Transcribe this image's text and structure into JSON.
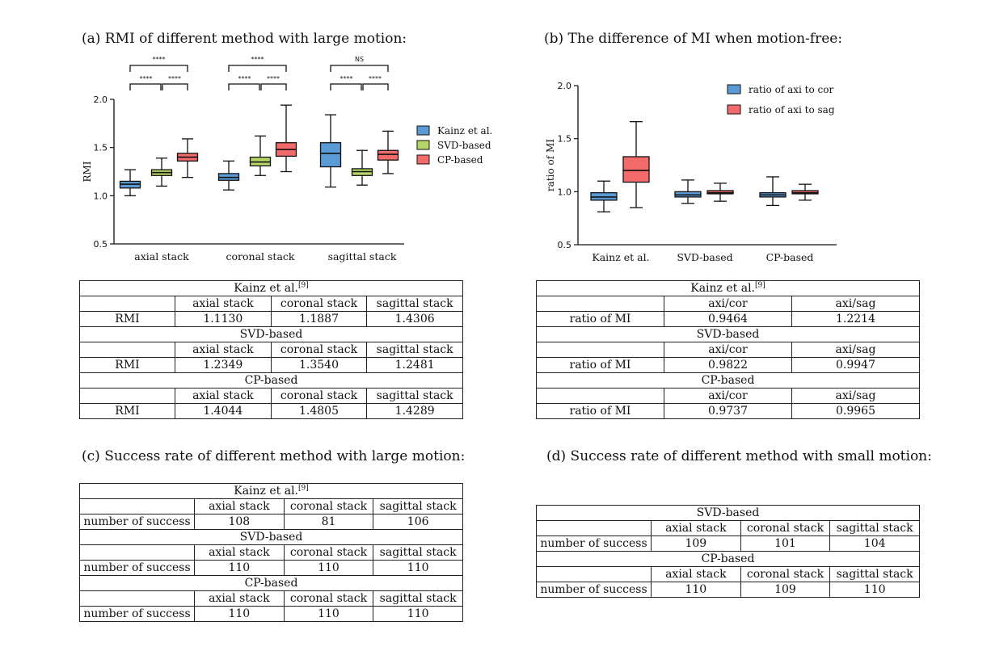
{
  "panels": {
    "a": {
      "title": "(a) RMI of different method with large motion:"
    },
    "b": {
      "title": "(b) The difference of MI when motion-free:"
    },
    "c": {
      "title": "(c) Success rate of different method with large motion:"
    },
    "d": {
      "title": "(d) Success rate of different method with small motion:"
    }
  },
  "chart_data": [
    {
      "type": "boxplot",
      "title": "(a) RMI of different method with large motion:",
      "xlabel": "",
      "ylabel": "RMI",
      "ylim": [
        0.5,
        2.0
      ],
      "yticks": [
        "0.5",
        "1.0",
        "1.5",
        "2.0"
      ],
      "categories": [
        "axial stack",
        "coronal stack",
        "sagittal stack"
      ],
      "legend": {
        "position": "right",
        "entries": [
          "Kainz et al.",
          "SVD-based",
          "CP-based"
        ]
      },
      "colors": [
        "#5b9bd5",
        "#b7d468",
        "#f26a6a"
      ],
      "series": [
        {
          "name": "Kainz et al.",
          "boxes": [
            {
              "min": 1.0,
              "q1": 1.08,
              "median": 1.12,
              "q3": 1.15,
              "max": 1.27
            },
            {
              "min": 1.06,
              "q1": 1.16,
              "median": 1.19,
              "q3": 1.23,
              "max": 1.36
            },
            {
              "min": 1.09,
              "q1": 1.3,
              "median": 1.44,
              "q3": 1.55,
              "max": 1.84
            }
          ]
        },
        {
          "name": "SVD-based",
          "boxes": [
            {
              "min": 1.1,
              "q1": 1.21,
              "median": 1.24,
              "q3": 1.27,
              "max": 1.39
            },
            {
              "min": 1.21,
              "q1": 1.31,
              "median": 1.35,
              "q3": 1.4,
              "max": 1.62
            },
            {
              "min": 1.11,
              "q1": 1.21,
              "median": 1.25,
              "q3": 1.28,
              "max": 1.47
            }
          ]
        },
        {
          "name": "CP-based",
          "boxes": [
            {
              "min": 1.19,
              "q1": 1.36,
              "median": 1.4,
              "q3": 1.44,
              "max": 1.59
            },
            {
              "min": 1.25,
              "q1": 1.41,
              "median": 1.48,
              "q3": 1.55,
              "max": 1.94
            },
            {
              "min": 1.23,
              "q1": 1.37,
              "median": 1.43,
              "q3": 1.47,
              "max": 1.67
            }
          ]
        }
      ],
      "significance": [
        {
          "group": "axial stack",
          "outer": "****",
          "left": "****",
          "right": "****"
        },
        {
          "group": "coronal stack",
          "outer": "****",
          "left": "****",
          "right": "****"
        },
        {
          "group": "sagittal stack",
          "outer": "NS",
          "left": "****",
          "right": "****"
        }
      ]
    },
    {
      "type": "boxplot",
      "title": "(b) The difference of MI when motion-free:",
      "xlabel": "",
      "ylabel": "ratio of MI",
      "ylim": [
        0.5,
        2.0
      ],
      "yticks": [
        "0.5",
        "1.0",
        "1.5",
        "2.0"
      ],
      "categories": [
        "Kainz et al.",
        "SVD-based",
        "CP-based"
      ],
      "legend": {
        "position": "top-right",
        "entries": [
          "ratio of axi to cor",
          "ratio of axi to sag"
        ]
      },
      "colors": [
        "#5b9bd5",
        "#f26a6a"
      ],
      "series": [
        {
          "name": "ratio of axi to cor",
          "boxes": [
            {
              "min": 0.81,
              "q1": 0.92,
              "median": 0.95,
              "q3": 0.99,
              "max": 1.1
            },
            {
              "min": 0.89,
              "q1": 0.95,
              "median": 0.97,
              "q3": 1.0,
              "max": 1.11
            },
            {
              "min": 0.87,
              "q1": 0.95,
              "median": 0.97,
              "q3": 0.99,
              "max": 1.14
            }
          ]
        },
        {
          "name": "ratio of axi to sag",
          "boxes": [
            {
              "min": 0.85,
              "q1": 1.09,
              "median": 1.2,
              "q3": 1.33,
              "max": 1.66
            },
            {
              "min": 0.91,
              "q1": 0.98,
              "median": 0.99,
              "q3": 1.01,
              "max": 1.08
            },
            {
              "min": 0.92,
              "q1": 0.98,
              "median": 0.99,
              "q3": 1.01,
              "max": 1.07
            }
          ]
        }
      ]
    }
  ],
  "tables": {
    "a": {
      "label_col_width": 118,
      "blocks": [
        {
          "title": "Kainz et al.",
          "sup": "[9]",
          "headers": [
            "axial stack",
            "coronal stack",
            "sagittal stack"
          ],
          "row_label": "RMI",
          "values": [
            "1.1130",
            "1.1887",
            "1.4306"
          ]
        },
        {
          "title": "SVD-based",
          "sup": "",
          "headers": [
            "axial stack",
            "coronal stack",
            "sagittal stack"
          ],
          "row_label": "RMI",
          "values": [
            "1.2349",
            "1.3540",
            "1.2481"
          ]
        },
        {
          "title": "CP-based",
          "sup": "",
          "headers": [
            "axial stack",
            "coronal stack",
            "sagittal stack"
          ],
          "row_label": "RMI",
          "values": [
            "1.4044",
            "1.4805",
            "1.4289"
          ]
        }
      ]
    },
    "b": {
      "label_col_width": 158,
      "blocks": [
        {
          "title": "Kainz et al.",
          "sup": "[9]",
          "headers": [
            "axi/cor",
            "axi/sag"
          ],
          "row_label": "ratio of MI",
          "values": [
            "0.9464",
            "1.2214"
          ]
        },
        {
          "title": "SVD-based",
          "sup": "",
          "headers": [
            "axi/cor",
            "axi/sag"
          ],
          "row_label": "ratio of MI",
          "values": [
            "0.9822",
            "0.9947"
          ]
        },
        {
          "title": "CP-based",
          "sup": "",
          "headers": [
            "axi/cor",
            "axi/sag"
          ],
          "row_label": "ratio of MI",
          "values": [
            "0.9737",
            "0.9965"
          ]
        }
      ]
    },
    "c": {
      "label_col_width": 142,
      "blocks": [
        {
          "title": "Kainz et al.",
          "sup": "[9]",
          "headers": [
            "axial stack",
            "coronal stack",
            "sagittal stack"
          ],
          "row_label": "number of success",
          "values": [
            "108",
            "81",
            "106"
          ]
        },
        {
          "title": "SVD-based",
          "sup": "",
          "headers": [
            "axial stack",
            "coronal stack",
            "sagittal stack"
          ],
          "row_label": "number of success",
          "values": [
            "110",
            "110",
            "110"
          ]
        },
        {
          "title": "CP-based",
          "sup": "",
          "headers": [
            "axial stack",
            "coronal stack",
            "sagittal stack"
          ],
          "row_label": "number of success",
          "values": [
            "110",
            "110",
            "110"
          ]
        }
      ]
    },
    "d": {
      "label_col_width": 142,
      "blocks": [
        {
          "title": "SVD-based",
          "sup": "",
          "headers": [
            "axial stack",
            "coronal stack",
            "sagittal stack"
          ],
          "row_label": "number of success",
          "values": [
            "109",
            "101",
            "104"
          ]
        },
        {
          "title": "CP-based",
          "sup": "",
          "headers": [
            "axial stack",
            "coronal stack",
            "sagittal stack"
          ],
          "row_label": "number of success",
          "values": [
            "110",
            "109",
            "110"
          ]
        }
      ]
    }
  }
}
